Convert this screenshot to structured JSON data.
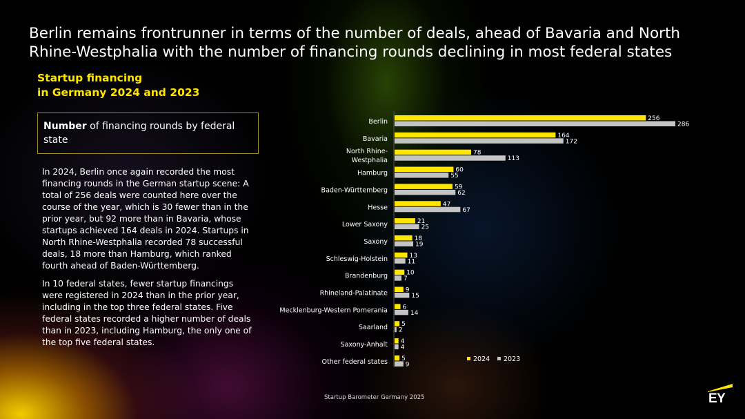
{
  "headline": "Berlin remains frontrunner in terms of the number of deals, ahead of Bavaria and North Rhine-Westphalia with the number of financing rounds declining in most federal states",
  "subtitle_line1": "Startup financing",
  "subtitle_line2": "in Germany 2024 and 2023",
  "box": {
    "bold": "Number",
    "rest": " of financing rounds by federal state"
  },
  "paragraph1": "In 2024, Berlin once again recorded the most financing rounds in the German startup scene: A total of 256 deals were counted here over the course of the year, which is 30 fewer than in the prior year, but 92 more than in Bavaria, whose startups achieved 164 deals in 2024. Startups in North Rhine-Westphalia recorded 78 successful deals, 18 more than Hamburg, which ranked fourth ahead of Baden-Württemberg.",
  "paragraph2": "In 10 federal states, fewer startup financings were registered in 2024 than in the prior year, including in the top three federal states. Five federal states recorded a higher number of deals than in 2023, including Hamburg, the only one of the top five federal states.",
  "footer": "Startup Barometer Germany 2025",
  "logo_text": "EY",
  "colors": {
    "accent": "#FFE600",
    "series_2023": "#C4C4C4"
  },
  "chart_data": {
    "type": "bar",
    "orientation": "horizontal",
    "categories": [
      [
        "Berlin"
      ],
      [
        "Bavaria"
      ],
      [
        "North Rhine-",
        "Westphalia"
      ],
      [
        "Hamburg"
      ],
      [
        "Baden-Württemberg"
      ],
      [
        "Hesse"
      ],
      [
        "Lower Saxony"
      ],
      [
        "Saxony"
      ],
      [
        "Schleswig-Holstein"
      ],
      [
        "Brandenburg"
      ],
      [
        "Rhineland-Palatinate"
      ],
      [
        "Mecklenburg-Western Pomerania"
      ],
      [
        "Saarland"
      ],
      [
        "Saxony-Anhalt"
      ],
      [
        "Other federal states"
      ]
    ],
    "series": [
      {
        "name": "2024",
        "color": "#FFE600",
        "values": [
          256,
          164,
          78,
          60,
          59,
          47,
          21,
          18,
          13,
          10,
          9,
          6,
          5,
          4,
          5
        ]
      },
      {
        "name": "2023",
        "color": "#C4C4C4",
        "values": [
          286,
          172,
          113,
          55,
          62,
          67,
          25,
          19,
          11,
          7,
          15,
          14,
          2,
          4,
          9
        ]
      }
    ],
    "xlim": [
      0,
      300
    ],
    "legend_position": "bottom-right",
    "grid": false
  }
}
